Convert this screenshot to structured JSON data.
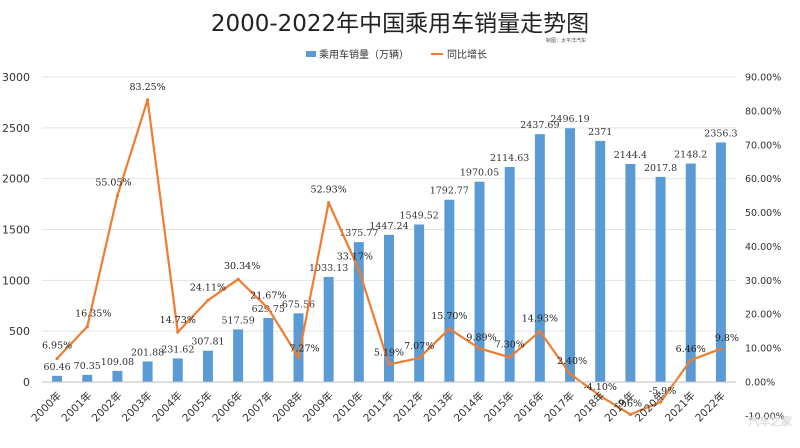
{
  "chart_data": {
    "type": "bar",
    "title": "2000-2022年中国乘用车销量走势图",
    "credit": "制图：太平洋汽车",
    "categories": [
      "2000年",
      "2001年",
      "2002年",
      "2003年",
      "2004年",
      "2005年",
      "2006年",
      "2007年",
      "2008年",
      "2009年",
      "2010年",
      "2011年",
      "2012年",
      "2013年",
      "2014年",
      "2015年",
      "2016年",
      "2017年",
      "2018年",
      "2019年",
      "2020年",
      "2021年",
      "2022年"
    ],
    "series": [
      {
        "name": "乘用车销量（万辆）",
        "type": "bar",
        "axis": "left",
        "color": "#5b9bd5",
        "values": [
          60.46,
          70.35,
          109.08,
          201.88,
          231.62,
          307.81,
          517.59,
          629.75,
          675.56,
          1033.13,
          1375.77,
          1447.24,
          1549.52,
          1792.77,
          1970.05,
          2114.63,
          2437.69,
          2496.19,
          2371,
          2144.4,
          2017.8,
          2148.2,
          2356.3
        ],
        "labels": [
          "60.46",
          "70.35",
          "109.08",
          "201.88",
          "231.62",
          "307.81",
          "517.59",
          "629.75",
          "675.56",
          "1033.13",
          "1375.77",
          "1447.24",
          "1549.52",
          "1792.77",
          "1970.05",
          "2114.63",
          "2437.69",
          "2496.19",
          "2371",
          "2144.4",
          "2017.8",
          "2148.2",
          "2356.3"
        ]
      },
      {
        "name": "同比增长",
        "type": "line",
        "axis": "right",
        "color": "#ed7d31",
        "values": [
          6.95,
          16.35,
          55.05,
          83.25,
          14.73,
          24.11,
          30.34,
          21.67,
          7.27,
          52.93,
          33.17,
          5.19,
          7.07,
          15.7,
          9.89,
          7.3,
          14.93,
          2.4,
          -4.1,
          -9.6,
          -5.9,
          6.46,
          9.8
        ],
        "labels": [
          "6.95%",
          "16.35%",
          "55.05%",
          "83.25%",
          "14.73%",
          "24.11%",
          "30.34%",
          "21.67%",
          "7.27%",
          "52.93%",
          "33.17%",
          "5.19%",
          "7.07%",
          "15.70%",
          "9.89%",
          "7.30%",
          "14.93%",
          "2.40%",
          "-4.10%",
          "-9.6%",
          "-5.9%",
          "6.46%",
          "9.8%"
        ]
      }
    ],
    "y_axis_left": {
      "ylim": [
        0,
        3000
      ],
      "ticks": [
        0,
        500,
        1000,
        1500,
        2000,
        2500,
        3000
      ],
      "tick_labels": [
        "0",
        "500",
        "1000",
        "1500",
        "2000",
        "2500",
        "3000"
      ]
    },
    "y_axis_right": {
      "ylim": [
        -10,
        90
      ],
      "ticks": [
        -10,
        0,
        10,
        20,
        30,
        40,
        50,
        60,
        70,
        80,
        90
      ],
      "tick_labels": [
        "-10.00%",
        "0.00%",
        "10.00%",
        "20.00%",
        "30.00%",
        "40.00%",
        "50.00%",
        "60.00%",
        "70.00%",
        "80.00%",
        "90.00%"
      ]
    },
    "grid": true,
    "legend_position": "top-center",
    "watermark": "汽车之家"
  }
}
